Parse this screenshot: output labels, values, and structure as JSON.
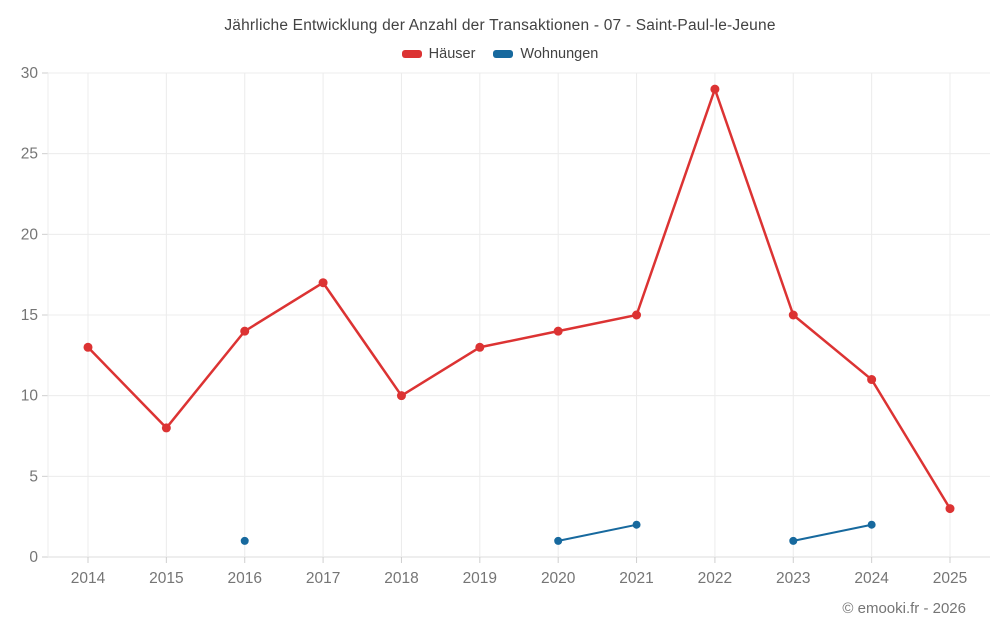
{
  "header": {
    "title": "Jährliche Entwicklung der Anzahl der Transaktionen - 07 - Saint-Paul-le-Jeune"
  },
  "footer": {
    "copyright": "© emooki.fr - 2026"
  },
  "colors": {
    "haeuser": "#dc3333",
    "wohnungen": "#17699e",
    "grid": "#ececec",
    "axis": "#dcdcdc",
    "tick": "#cfcfcf",
    "axis_text": "#757575",
    "title_text": "#424242"
  },
  "chart_data": {
    "type": "line",
    "title": "Jährliche Entwicklung der Anzahl der Transaktionen - 07 - Saint-Paul-le-Jeune",
    "categories": [
      "2014",
      "2015",
      "2016",
      "2017",
      "2018",
      "2019",
      "2020",
      "2021",
      "2022",
      "2023",
      "2024",
      "2025"
    ],
    "series": [
      {
        "name": "Häuser",
        "color": "#dc3333",
        "values": [
          13,
          8,
          14,
          17,
          10,
          13,
          14,
          15,
          29,
          15,
          11,
          3
        ]
      },
      {
        "name": "Wohnungen",
        "color": "#17699e",
        "values": [
          null,
          null,
          1,
          null,
          null,
          null,
          1,
          2,
          null,
          1,
          2,
          null
        ]
      }
    ],
    "xlabel": "",
    "ylabel": "",
    "ylim": [
      0,
      30
    ],
    "yticks": [
      0,
      5,
      10,
      15,
      20,
      25,
      30
    ],
    "grid": true,
    "legend_position": "top"
  }
}
